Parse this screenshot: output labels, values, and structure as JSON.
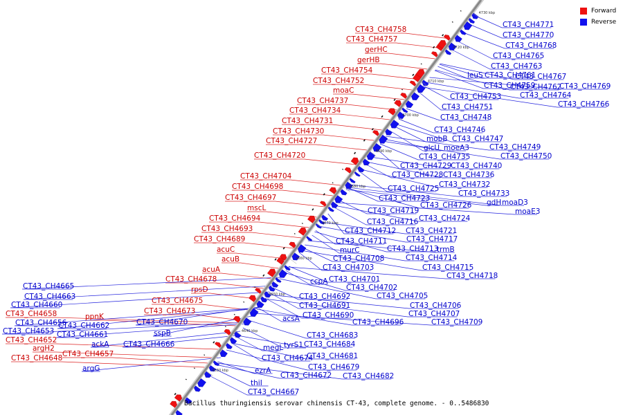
{
  "caption": "Bacillus thuringiensis serovar chinensis CT-43, complete genome. - 0..5486830",
  "legend": [
    {
      "label": "Forward",
      "color": "#ee1111"
    },
    {
      "label": "Reverse",
      "color": "#1111ee"
    }
  ],
  "ticks": [
    "4630 kbp",
    "4640 kbp",
    "4650 kbp",
    "4660 kbp",
    "4670 kbp",
    "4680 kbp",
    "4690 kbp",
    "4700 kbp",
    "4710 kbp",
    "4720 kbp",
    "4730 kbp"
  ],
  "forward_labels": [
    {
      "text": "CT43_CH4758"
    },
    {
      "text": "CT43_CH4757"
    },
    {
      "text": "gerHC"
    },
    {
      "text": "gerHB"
    },
    {
      "text": "CT43_CH4754"
    },
    {
      "text": "CT43_CH4752"
    },
    {
      "text": "moaC"
    },
    {
      "text": "CT43_CH4737"
    },
    {
      "text": "CT43_CH4734"
    },
    {
      "text": "CT43_CH4731"
    },
    {
      "text": "CT43_CH4730"
    },
    {
      "text": "CT43_CH4727"
    },
    {
      "text": "CT43_CH4720"
    },
    {
      "text": "CT43_CH4704"
    },
    {
      "text": "CT43_CH4698"
    },
    {
      "text": "CT43_CH4697"
    },
    {
      "text": "mscL"
    },
    {
      "text": "CT43_CH4694"
    },
    {
      "text": "CT43_CH4693"
    },
    {
      "text": "CT43_CH4689"
    },
    {
      "text": "acuC"
    },
    {
      "text": "acuB"
    },
    {
      "text": "acuA"
    },
    {
      "text": "CT43_CH4678"
    },
    {
      "text": "rpsD"
    },
    {
      "text": "CT43_CH4675"
    },
    {
      "text": "CT43_CH4673"
    },
    {
      "text": "ppnK"
    },
    {
      "text": "CT43_CH4658"
    },
    {
      "text": "CT43_CH4652"
    },
    {
      "text": "argH2"
    },
    {
      "text": "CT43_CH4657"
    },
    {
      "text": "CT43_CH4648"
    }
  ],
  "reverse_labels": [
    {
      "text": "CT43_CH4771"
    },
    {
      "text": "CT43_CH4770"
    },
    {
      "text": "CT43_CH4768"
    },
    {
      "text": "CT43_CH4765"
    },
    {
      "text": "CT43_CH4763"
    },
    {
      "text": "leuS"
    },
    {
      "text": "CT43_CH4761"
    },
    {
      "text": "CT43_CH4767"
    },
    {
      "text": "CT43_CH4759"
    },
    {
      "text": "CT43_CH4762"
    },
    {
      "text": "CT43_CH4769"
    },
    {
      "text": "CT43_CH4753"
    },
    {
      "text": "CT43_CH4764"
    },
    {
      "text": "CT43_CH4751"
    },
    {
      "text": "CT43_CH4766"
    },
    {
      "text": "CT43_CH4748"
    },
    {
      "text": "CT43_CH4746"
    },
    {
      "text": "mobB"
    },
    {
      "text": "CT43_CH4747"
    },
    {
      "text": "glcU"
    },
    {
      "text": "moeA3"
    },
    {
      "text": "CT43_CH4749"
    },
    {
      "text": "CT43_CH4735"
    },
    {
      "text": "CT43_CH4750"
    },
    {
      "text": "CT43_CH4729"
    },
    {
      "text": "CT43_CH4740"
    },
    {
      "text": "CT43_CH4728"
    },
    {
      "text": "CT43_CH4736"
    },
    {
      "text": "CT43_CH4732"
    },
    {
      "text": "CT43_CH4725"
    },
    {
      "text": "CT43_CH4733"
    },
    {
      "text": "CT43_CH4723"
    },
    {
      "text": "gdH"
    },
    {
      "text": "moaD3"
    },
    {
      "text": "CT43_CH4726"
    },
    {
      "text": "moaE3"
    },
    {
      "text": "CT43_CH4719"
    },
    {
      "text": "CT43_CH4724"
    },
    {
      "text": "CT43_CH4716"
    },
    {
      "text": "CT43_CH4712"
    },
    {
      "text": "CT43_CH4721"
    },
    {
      "text": "CT43_CH4711"
    },
    {
      "text": "CT43_CH4717"
    },
    {
      "text": "murC"
    },
    {
      "text": "CT43_CH4713"
    },
    {
      "text": "trmB"
    },
    {
      "text": "CT43_CH4708"
    },
    {
      "text": "CT43_CH4714"
    },
    {
      "text": "CT43_CH4703"
    },
    {
      "text": "CT43_CH4715"
    },
    {
      "text": "CT43_CH4718"
    },
    {
      "text": "ccpA"
    },
    {
      "text": "CT43_CH4701"
    },
    {
      "text": "CT43_CH4702"
    },
    {
      "text": "CT43_CH4705"
    },
    {
      "text": "CT43_CH4692"
    },
    {
      "text": "CT43_CH4706"
    },
    {
      "text": "CT43_CH4691"
    },
    {
      "text": "CT43_CH4707"
    },
    {
      "text": "CT43_CH4690"
    },
    {
      "text": "CT43_CH4709"
    },
    {
      "text": "acsA"
    },
    {
      "text": "CT43_CH4696"
    },
    {
      "text": "CT43_CH4683"
    },
    {
      "text": "tyrS1"
    },
    {
      "text": "CT43_CH4684"
    },
    {
      "text": "megL"
    },
    {
      "text": "CT43_CH4681"
    },
    {
      "text": "CT43_CH4674"
    },
    {
      "text": "CT43_CH4679"
    },
    {
      "text": "ezrA"
    },
    {
      "text": "CT43_CH4672"
    },
    {
      "text": "CT43_CH4682"
    },
    {
      "text": "thiI"
    },
    {
      "text": "CT43_CH4667"
    },
    {
      "text": "CT43_CH4665"
    },
    {
      "text": "CT43_CH4663"
    },
    {
      "text": "CT43_CH4660"
    },
    {
      "text": "CT43_CH4656"
    },
    {
      "text": "CT43_CH4662"
    },
    {
      "text": "CT43_CH4653"
    },
    {
      "text": "CT43_CH4661"
    },
    {
      "text": "ackA"
    },
    {
      "text": "CT43_CH4670"
    },
    {
      "text": "sspB"
    },
    {
      "text": "CT43_CH4666"
    },
    {
      "text": "argG"
    }
  ]
}
